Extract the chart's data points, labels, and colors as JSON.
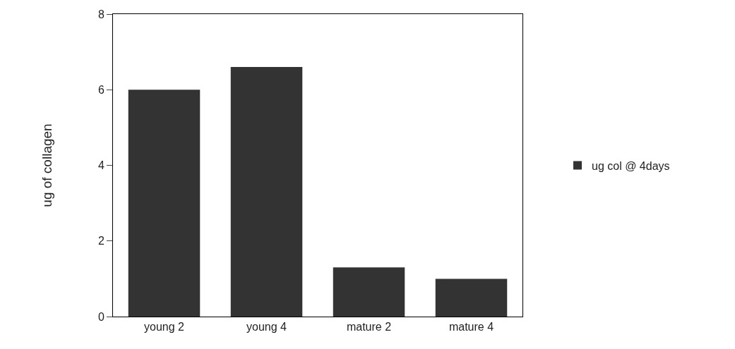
{
  "chart_data": {
    "type": "bar",
    "ylabel": "ug of collagen",
    "categories": [
      "young 2",
      "young 4",
      "mature 2",
      "mature 4"
    ],
    "series": [
      {
        "name": "ug col @ 4days",
        "color": "#333333",
        "values": [
          6.0,
          6.6,
          1.3,
          1.0
        ]
      }
    ],
    "ylim": [
      0,
      8
    ],
    "yticks": [
      0,
      2,
      4,
      6,
      8
    ],
    "legend": "right"
  }
}
